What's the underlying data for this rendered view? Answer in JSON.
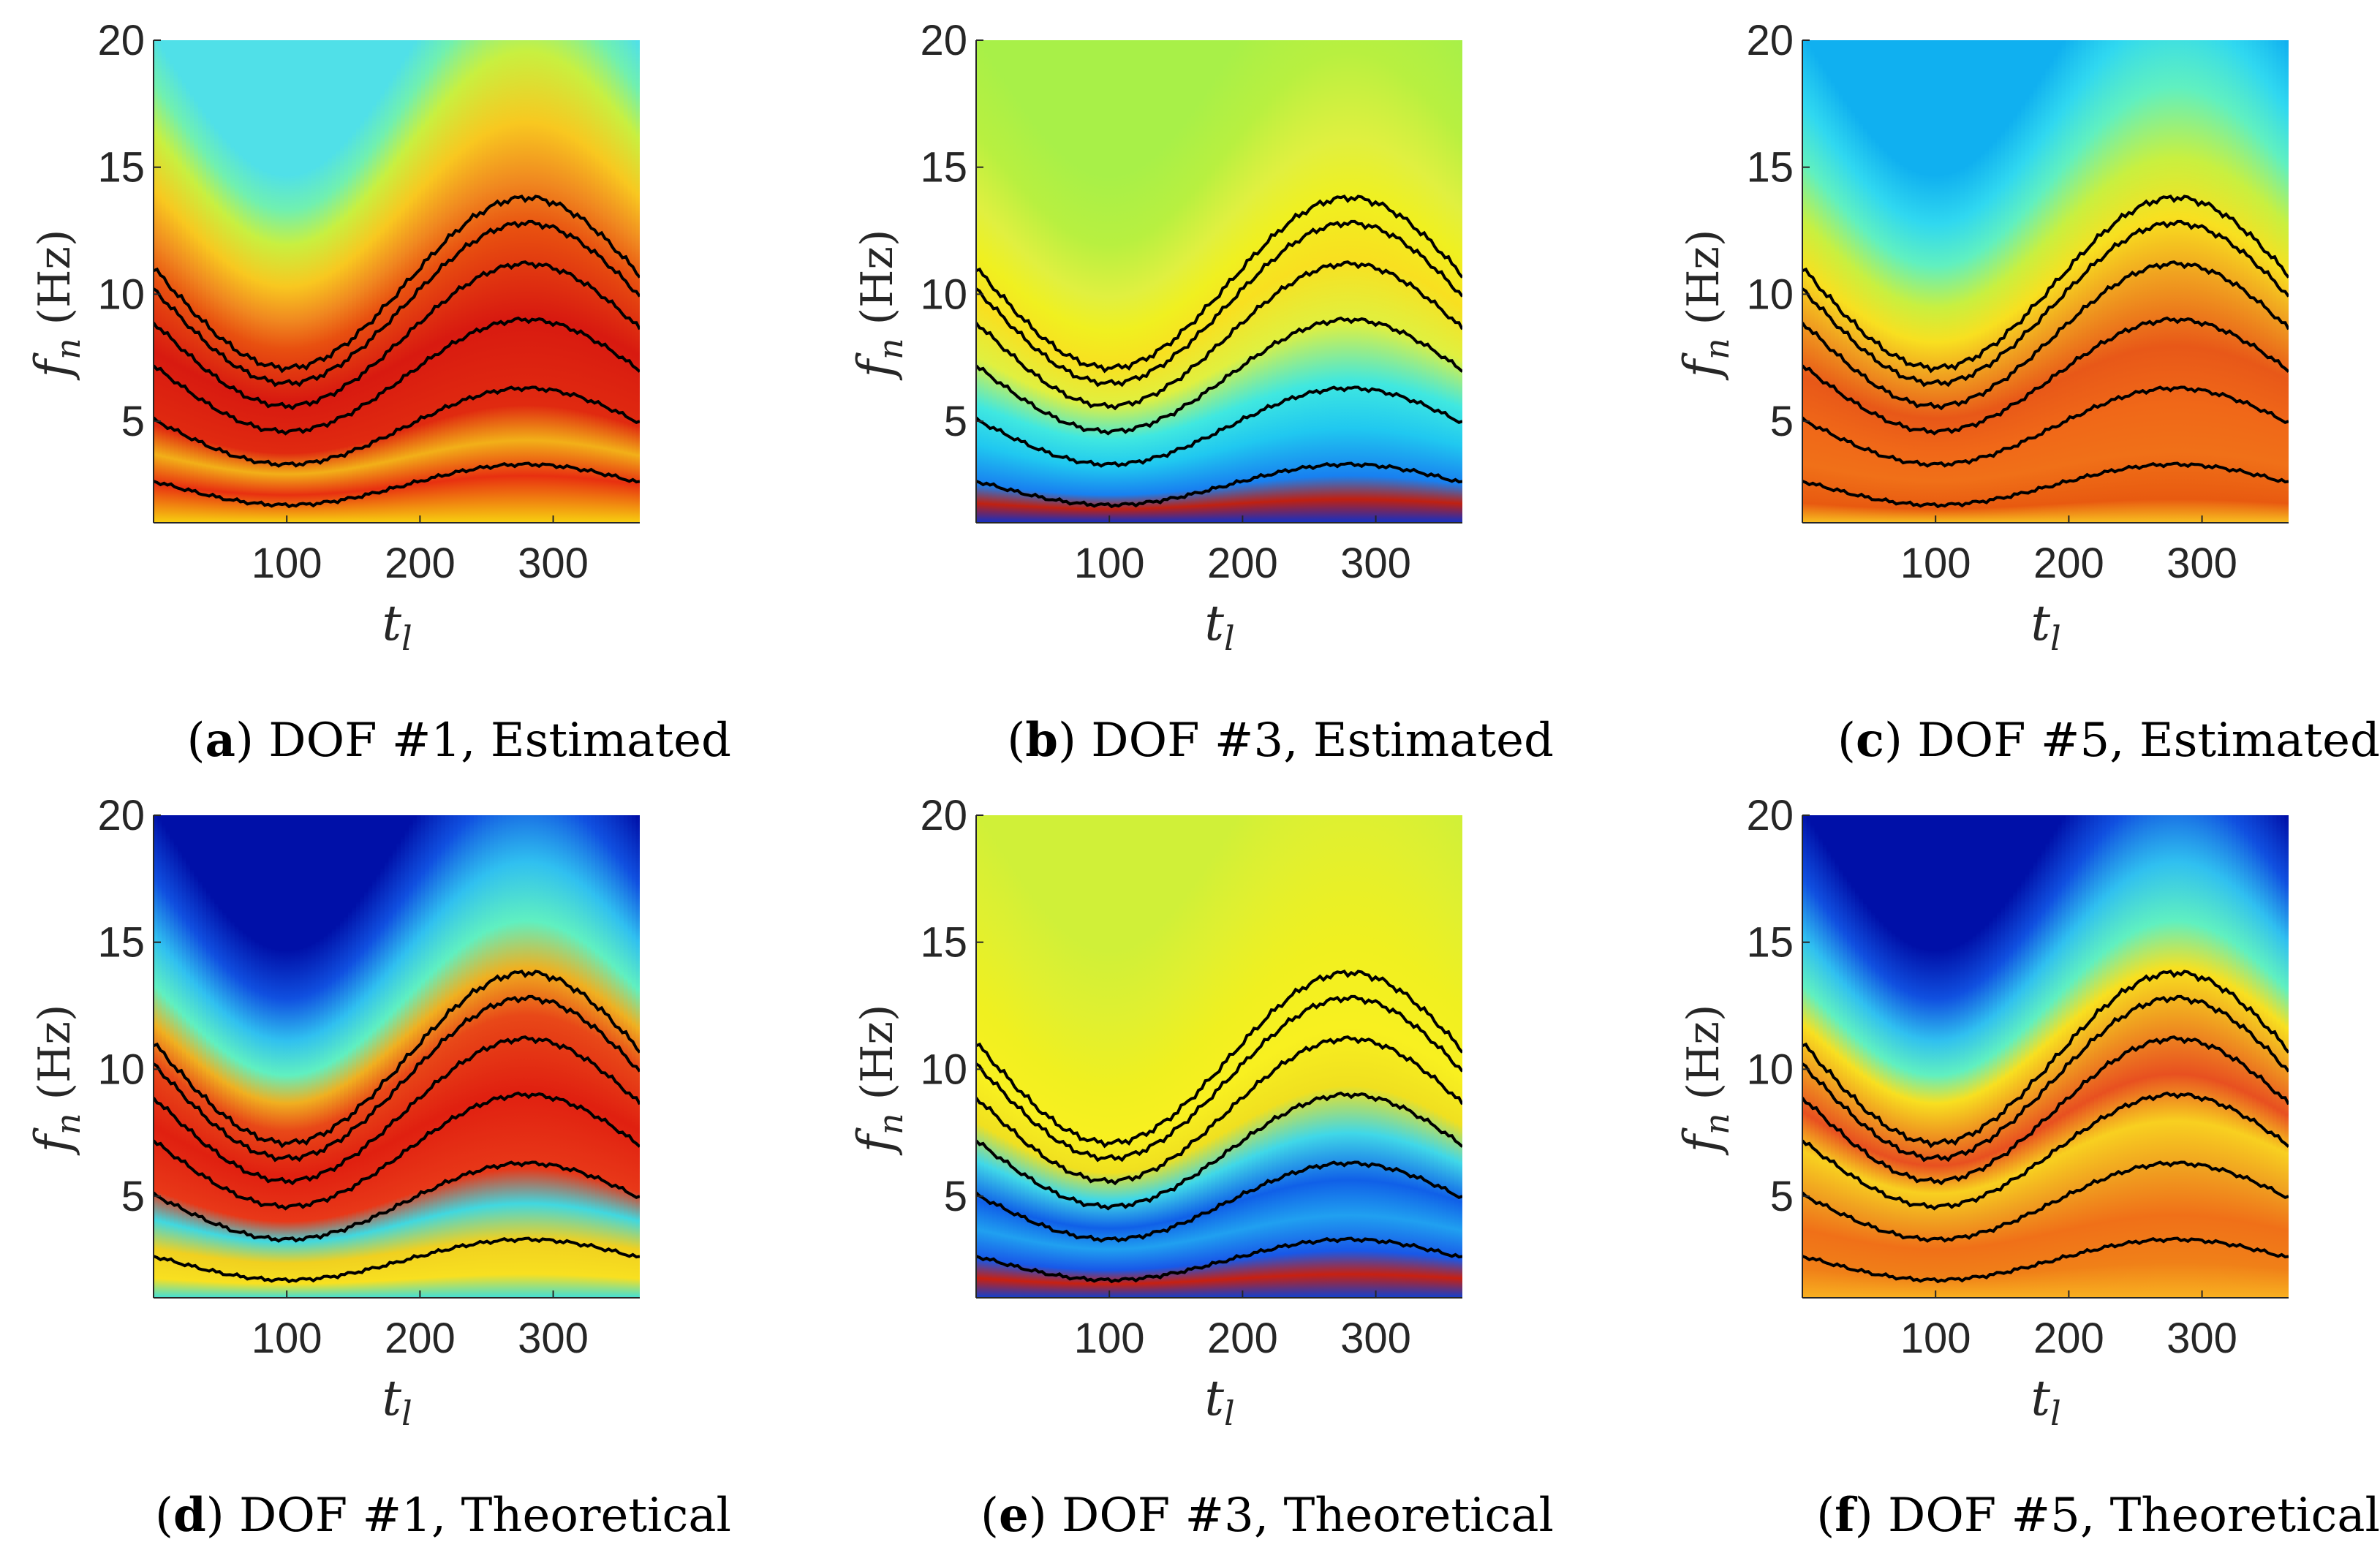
{
  "chart_data": [
    {
      "type": "heatmap",
      "subfigure": "a",
      "caption": "DOF #1, Estimated",
      "xlabel": "t_l",
      "ylabel": "f_n (Hz)",
      "xlim": [
        0,
        365
      ],
      "ylim": [
        1,
        20
      ],
      "xticks": [
        100,
        200,
        300
      ],
      "yticks": [
        5,
        10,
        15,
        20
      ],
      "colormap": "jet",
      "ridge_lines": {
        "color": "#000000",
        "count": 6,
        "min_values_at_t_100": [
          1.7,
          3.3,
          4.6,
          5.6,
          6.5,
          7.1
        ],
        "max_values_at_t_280": [
          3.3,
          6.3,
          9.0,
          11.2,
          12.8,
          13.8
        ]
      },
      "background": "high power (red) in the band around the ridge lines, fading to yellow/cyan above"
    },
    {
      "type": "heatmap",
      "subfigure": "b",
      "caption": "DOF #3, Estimated",
      "xlabel": "t_l",
      "ylabel": "f_n (Hz)",
      "xlim": [
        0,
        365
      ],
      "ylim": [
        1,
        20
      ],
      "xticks": [
        100,
        200,
        300
      ],
      "yticks": [
        5,
        10,
        15,
        20
      ],
      "colormap": "jet",
      "ridge_lines": {
        "color": "#000000",
        "count": 6,
        "min_values_at_t_100": [
          1.7,
          3.3,
          4.6,
          5.6,
          6.5,
          7.1
        ],
        "max_values_at_t_280": [
          3.3,
          6.3,
          9.0,
          11.2,
          12.8,
          13.8
        ]
      },
      "background": "green/yellow overall, blue band between the lowest ridges"
    },
    {
      "type": "heatmap",
      "subfigure": "c",
      "caption": "DOF #5, Estimated",
      "xlabel": "t_l",
      "ylabel": "f_n (Hz)",
      "xlim": [
        0,
        365
      ],
      "ylim": [
        1,
        20
      ],
      "xticks": [
        100,
        200,
        300
      ],
      "yticks": [
        5,
        10,
        15,
        20
      ],
      "colormap": "jet",
      "ridge_lines": {
        "color": "#000000",
        "count": 6,
        "min_values_at_t_100": [
          1.7,
          3.3,
          4.6,
          5.6,
          6.5,
          7.1
        ],
        "max_values_at_t_280": [
          3.3,
          6.3,
          9.0,
          11.2,
          12.8,
          13.8
        ]
      },
      "background": "orange/red band with yellow gaps, cyan above"
    },
    {
      "type": "heatmap",
      "subfigure": "d",
      "caption": "DOF #1, Theoretical",
      "xlabel": "t_l",
      "ylabel": "f_n (Hz)",
      "xlim": [
        0,
        365
      ],
      "ylim": [
        1,
        20
      ],
      "xticks": [
        100,
        200,
        300
      ],
      "yticks": [
        5,
        10,
        15,
        20
      ],
      "colormap": "jet",
      "ridge_lines": {
        "color": "#000000",
        "count": 6,
        "min_values_at_t_100": [
          1.7,
          3.3,
          4.6,
          5.6,
          6.5,
          7.1
        ],
        "max_values_at_t_280": [
          3.3,
          6.3,
          9.0,
          11.2,
          12.8,
          13.8
        ]
      },
      "background": "red band with cyan gap near second ridge, deep blue at top-left"
    },
    {
      "type": "heatmap",
      "subfigure": "e",
      "caption": "DOF #3, Theoretical",
      "xlabel": "t_l",
      "ylabel": "f_n (Hz)",
      "xlim": [
        0,
        365
      ],
      "ylim": [
        1,
        20
      ],
      "xticks": [
        100,
        200,
        300
      ],
      "yticks": [
        5,
        10,
        15,
        20
      ],
      "colormap": "jet",
      "ridge_lines": {
        "color": "#000000",
        "count": 6,
        "min_values_at_t_100": [
          1.7,
          3.3,
          4.6,
          5.6,
          6.5,
          7.1
        ],
        "max_values_at_t_280": [
          3.3,
          6.3,
          9.0,
          11.2,
          12.8,
          13.8
        ]
      },
      "background": "yellow overall, blue bands between the lower ridges"
    },
    {
      "type": "heatmap",
      "subfigure": "f",
      "caption": "DOF #5, Theoretical",
      "xlabel": "t_l",
      "ylabel": "f_n (Hz)",
      "xlim": [
        0,
        365
      ],
      "ylim": [
        1,
        20
      ],
      "xticks": [
        100,
        200,
        300
      ],
      "yticks": [
        5,
        10,
        15,
        20
      ],
      "colormap": "jet",
      "ridge_lines": {
        "color": "#000000",
        "count": 6,
        "min_values_at_t_100": [
          1.7,
          3.3,
          4.6,
          5.6,
          6.5,
          7.1
        ],
        "max_values_at_t_280": [
          3.3,
          6.3,
          9.0,
          11.2,
          12.8,
          13.8
        ]
      },
      "background": "orange/yellow band, deep blue at top-left"
    }
  ],
  "labels": {
    "xlabel_main": "t",
    "xlabel_sub": "l",
    "ylabel_main": "f",
    "ylabel_sub": "n",
    "ylabel_unit": "(Hz)",
    "tick_100": "100",
    "tick_200": "200",
    "tick_300": "300",
    "tick_5": "5",
    "tick_10": "10",
    "tick_15": "15",
    "tick_20": "20"
  },
  "captions": [
    {
      "letter": "a",
      "text": "DOF #1, Estimated"
    },
    {
      "letter": "b",
      "text": "DOF #3, Estimated"
    },
    {
      "letter": "c",
      "text": "DOF #5, Estimated"
    },
    {
      "letter": "d",
      "text": "DOF #1, Theoretical"
    },
    {
      "letter": "e",
      "text": "DOF #3, Theoretical"
    },
    {
      "letter": "f",
      "text": "DOF #5, Theoretical"
    }
  ]
}
